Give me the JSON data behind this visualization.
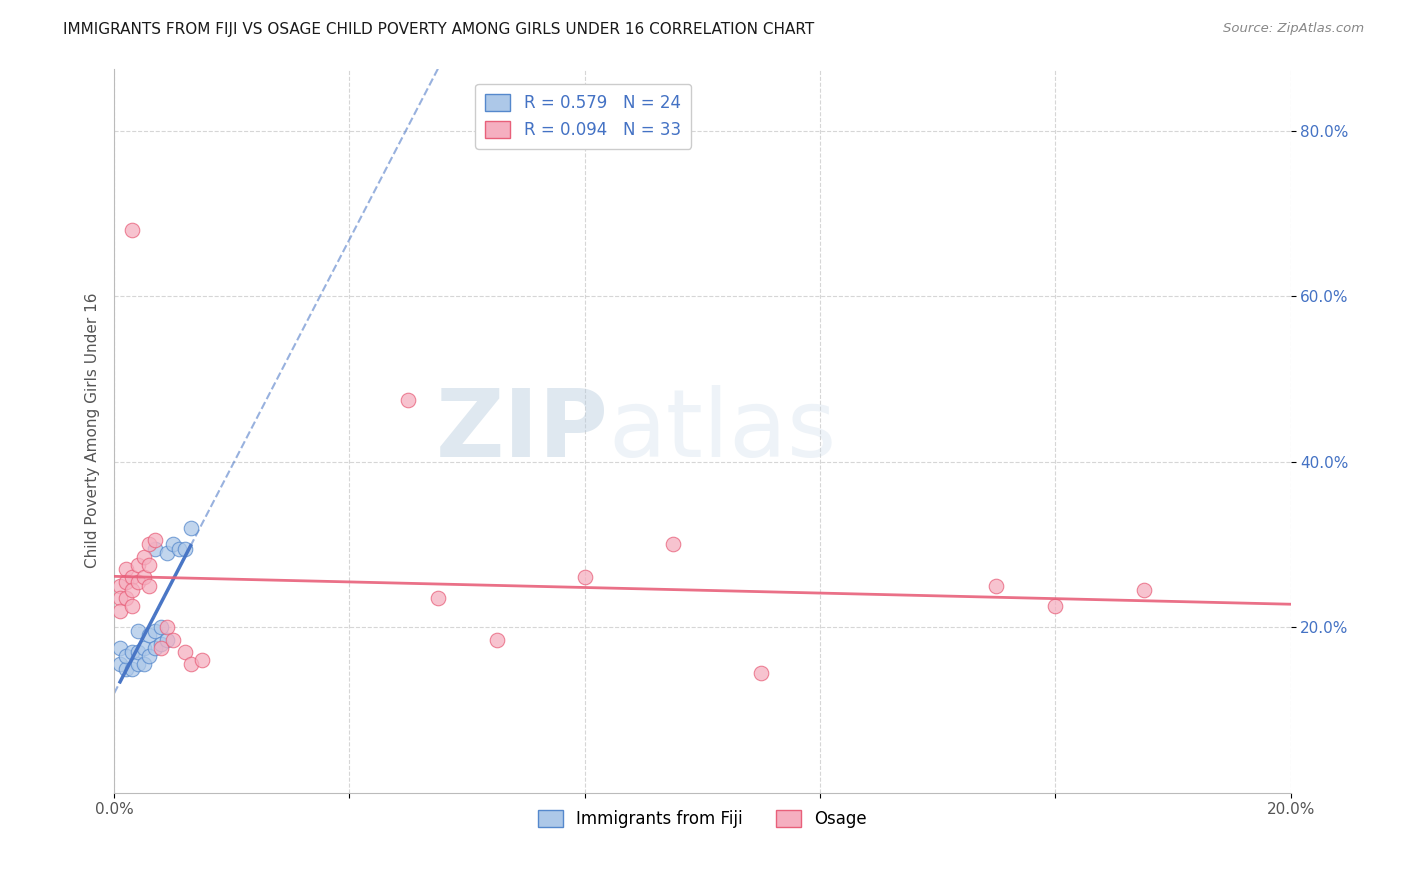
{
  "title": "IMMIGRANTS FROM FIJI VS OSAGE CHILD POVERTY AMONG GIRLS UNDER 16 CORRELATION CHART",
  "source": "Source: ZipAtlas.com",
  "ylabel": "Child Poverty Among Girls Under 16",
  "xlim": [
    0.0,
    0.2
  ],
  "ylim": [
    0.0,
    0.875
  ],
  "fiji_R": 0.579,
  "fiji_N": 24,
  "osage_R": 0.094,
  "osage_N": 33,
  "fiji_color": "#adc8e8",
  "fiji_line_color": "#4472c4",
  "fiji_edge_color": "#5588cc",
  "osage_color": "#f5afc0",
  "osage_line_color": "#e8607a",
  "osage_edge_color": "#e8607a",
  "watermark_color": "#cddff0",
  "fiji_points_x": [
    0.001,
    0.001,
    0.002,
    0.002,
    0.003,
    0.003,
    0.004,
    0.004,
    0.004,
    0.005,
    0.005,
    0.006,
    0.006,
    0.007,
    0.007,
    0.007,
    0.008,
    0.008,
    0.009,
    0.009,
    0.01,
    0.011,
    0.012,
    0.013
  ],
  "fiji_points_y": [
    0.155,
    0.175,
    0.15,
    0.165,
    0.15,
    0.17,
    0.155,
    0.17,
    0.195,
    0.155,
    0.175,
    0.165,
    0.19,
    0.175,
    0.195,
    0.295,
    0.18,
    0.2,
    0.185,
    0.29,
    0.3,
    0.295,
    0.295,
    0.32
  ],
  "osage_points_x": [
    0.001,
    0.001,
    0.001,
    0.002,
    0.002,
    0.002,
    0.003,
    0.003,
    0.003,
    0.003,
    0.004,
    0.004,
    0.005,
    0.005,
    0.006,
    0.006,
    0.006,
    0.007,
    0.008,
    0.009,
    0.01,
    0.012,
    0.013,
    0.015,
    0.05,
    0.055,
    0.065,
    0.08,
    0.095,
    0.11,
    0.15,
    0.16,
    0.175
  ],
  "osage_points_y": [
    0.25,
    0.235,
    0.22,
    0.27,
    0.255,
    0.235,
    0.26,
    0.245,
    0.225,
    0.68,
    0.275,
    0.255,
    0.285,
    0.26,
    0.3,
    0.275,
    0.25,
    0.305,
    0.175,
    0.2,
    0.185,
    0.17,
    0.155,
    0.16,
    0.475,
    0.235,
    0.185,
    0.26,
    0.3,
    0.145,
    0.25,
    0.225,
    0.245
  ]
}
